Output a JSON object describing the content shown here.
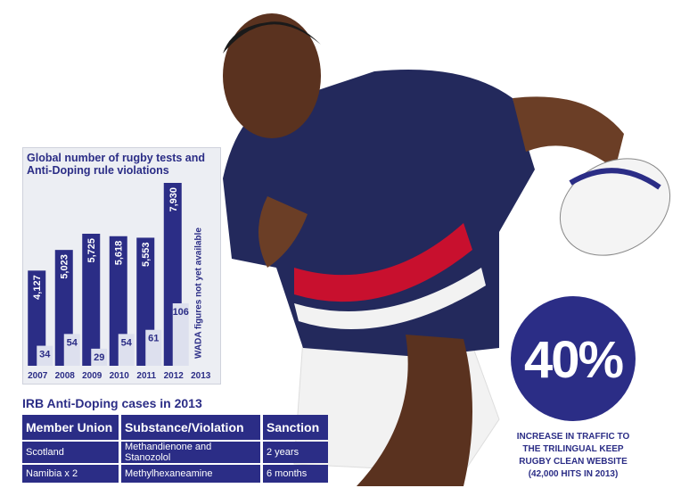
{
  "chart_data": {
    "type": "bar",
    "title": "Global number of rugby tests and Anti-Doping rule violations",
    "categories": [
      "2007",
      "2008",
      "2009",
      "2010",
      "2011",
      "2012",
      "2013"
    ],
    "series": [
      {
        "name": "Rugby tests",
        "color": "#2b2d86",
        "values": [
          4127,
          5023,
          5725,
          5618,
          5553,
          7930,
          null
        ],
        "value_labels": [
          "4,127",
          "5,023",
          "5,725",
          "5,618",
          "5,553",
          "7,930",
          null
        ]
      },
      {
        "name": "Anti-Doping rule violations",
        "color": "#dde0ee",
        "values": [
          34,
          54,
          29,
          54,
          61,
          106,
          null
        ]
      }
    ],
    "annotation": "WADA figures not yet available"
  },
  "table": {
    "title": "IRB Anti-Doping cases in 2013",
    "header": [
      "Member Union",
      "Substance/Violation",
      "Sanction"
    ],
    "rows": [
      [
        "Scotland",
        "Methandienone and Stanozolol",
        "2 years"
      ],
      [
        "Namibia x 2",
        "Methylhexaneamine",
        "6 months"
      ]
    ]
  },
  "callout": {
    "value": "40%",
    "lines": [
      "INCREASE IN TRAFFIC TO",
      "THE TRILINGUAL KEEP",
      "RUGBY CLEAN WEBSITE",
      "(42,000 HITS IN 2013)"
    ]
  }
}
